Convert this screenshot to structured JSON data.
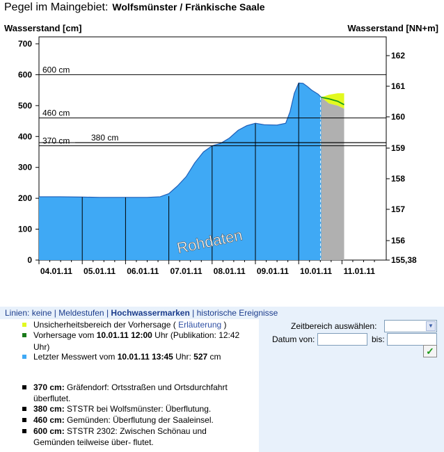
{
  "header": {
    "title": "Pegel im Maingebiet:",
    "station": "Wolfsmünster / Fränkische Saale",
    "left_axis_title": "Wasserstand [cm]",
    "right_axis_title": "Wasserstand [NN+m]"
  },
  "chart_data": {
    "type": "area",
    "x_tick_labels": [
      "04.01.11",
      "05.01.11",
      "06.01.11",
      "07.01.11",
      "08.01.11",
      "09.01.11",
      "10.01.11",
      "11.01.11"
    ],
    "ylim_left": [
      0,
      700
    ],
    "yticks_left": [
      "0",
      "100",
      "200",
      "300",
      "400",
      "500",
      "600",
      "700"
    ],
    "yticks_right": [
      "155,38",
      "156",
      "157",
      "158",
      "159",
      "160",
      "161",
      "162"
    ],
    "yticks_right_values": [
      155.38,
      156,
      157,
      158,
      159,
      160,
      161,
      162
    ],
    "threshold_lines": [
      {
        "label": "600 cm",
        "value": 600
      },
      {
        "label": "460 cm",
        "value": 460
      },
      {
        "label": "380 cm",
        "value": 380
      },
      {
        "label": "370 cm",
        "value": 370
      }
    ],
    "measured": {
      "x_days": [
        0,
        0.5,
        1,
        1.4,
        2,
        2.5,
        2.8,
        3.0,
        3.2,
        3.4,
        3.6,
        3.8,
        4.0,
        4.2,
        4.4,
        4.6,
        4.8,
        5.0,
        5.2,
        5.5,
        5.7,
        5.8,
        5.9,
        6.0,
        6.1,
        6.2,
        6.3,
        6.45,
        6.52
      ],
      "values": [
        205,
        205,
        204,
        203,
        203,
        203,
        205,
        215,
        240,
        270,
        315,
        350,
        370,
        378,
        395,
        420,
        435,
        443,
        438,
        437,
        443,
        480,
        540,
        573,
        572,
        562,
        550,
        537,
        527
      ]
    },
    "forecast": {
      "x_days": [
        6.52,
        6.7,
        6.9,
        7.05
      ],
      "values": [
        527,
        522,
        514,
        503
      ],
      "upper": [
        527,
        535,
        540,
        540
      ],
      "lower": [
        527,
        507,
        500,
        490
      ]
    },
    "annotation": "Rohdaten",
    "colors": {
      "measured": "#3fa9f5",
      "forecast_band": "#e2f91f",
      "forecast_line": "#1a9a1a",
      "future": "#b0b0b0"
    }
  },
  "controls": {
    "lines_prefix": "Linien:",
    "lines_options": [
      "keine",
      "Meldestufen",
      "Hochwassermarken",
      "historische Ereignisse"
    ],
    "zeitbereich_label": "Zeitbereich auswählen:",
    "datum_von_label": "Datum von:",
    "bis_label": "bis:",
    "datum_von_value": "",
    "bis_value": "",
    "ok_symbol": "✓"
  },
  "legend": {
    "uncertainty": "Unsicherheitsbereich der Vorhersage (",
    "uncertainty_link": "Erläuterung",
    "uncertainty_close": ")",
    "forecast_prefix": "Vorhersage vom",
    "forecast_datetime": "10.01.11 12:00",
    "forecast_suffix": "Uhr (Publikation: 12:42 Uhr)",
    "measured_prefix": "Letzter Messwert vom",
    "measured_datetime": "10.01.11 13:45",
    "measured_middle": "Uhr:",
    "measured_value": "527",
    "measured_unit": "cm",
    "colors": {
      "uncertainty": "#e2f91f",
      "forecast": "#1a7a1a",
      "measured": "#3fa9f5"
    }
  },
  "marks": [
    {
      "level": "370 cm:",
      "text": "Gräfendorf: Ortsstraßen und Ortsdurchfahrt überflutet."
    },
    {
      "level": "380 cm:",
      "text": "STSTR bei Wolfsmünster: Überflutung."
    },
    {
      "level": "460 cm:",
      "text": "Gemünden: Überflutung der Saaleinsel."
    },
    {
      "level": "600 cm:",
      "text": "STSTR 2302: Zwischen Schönau und Gemünden teilweise über- flutet."
    }
  ]
}
